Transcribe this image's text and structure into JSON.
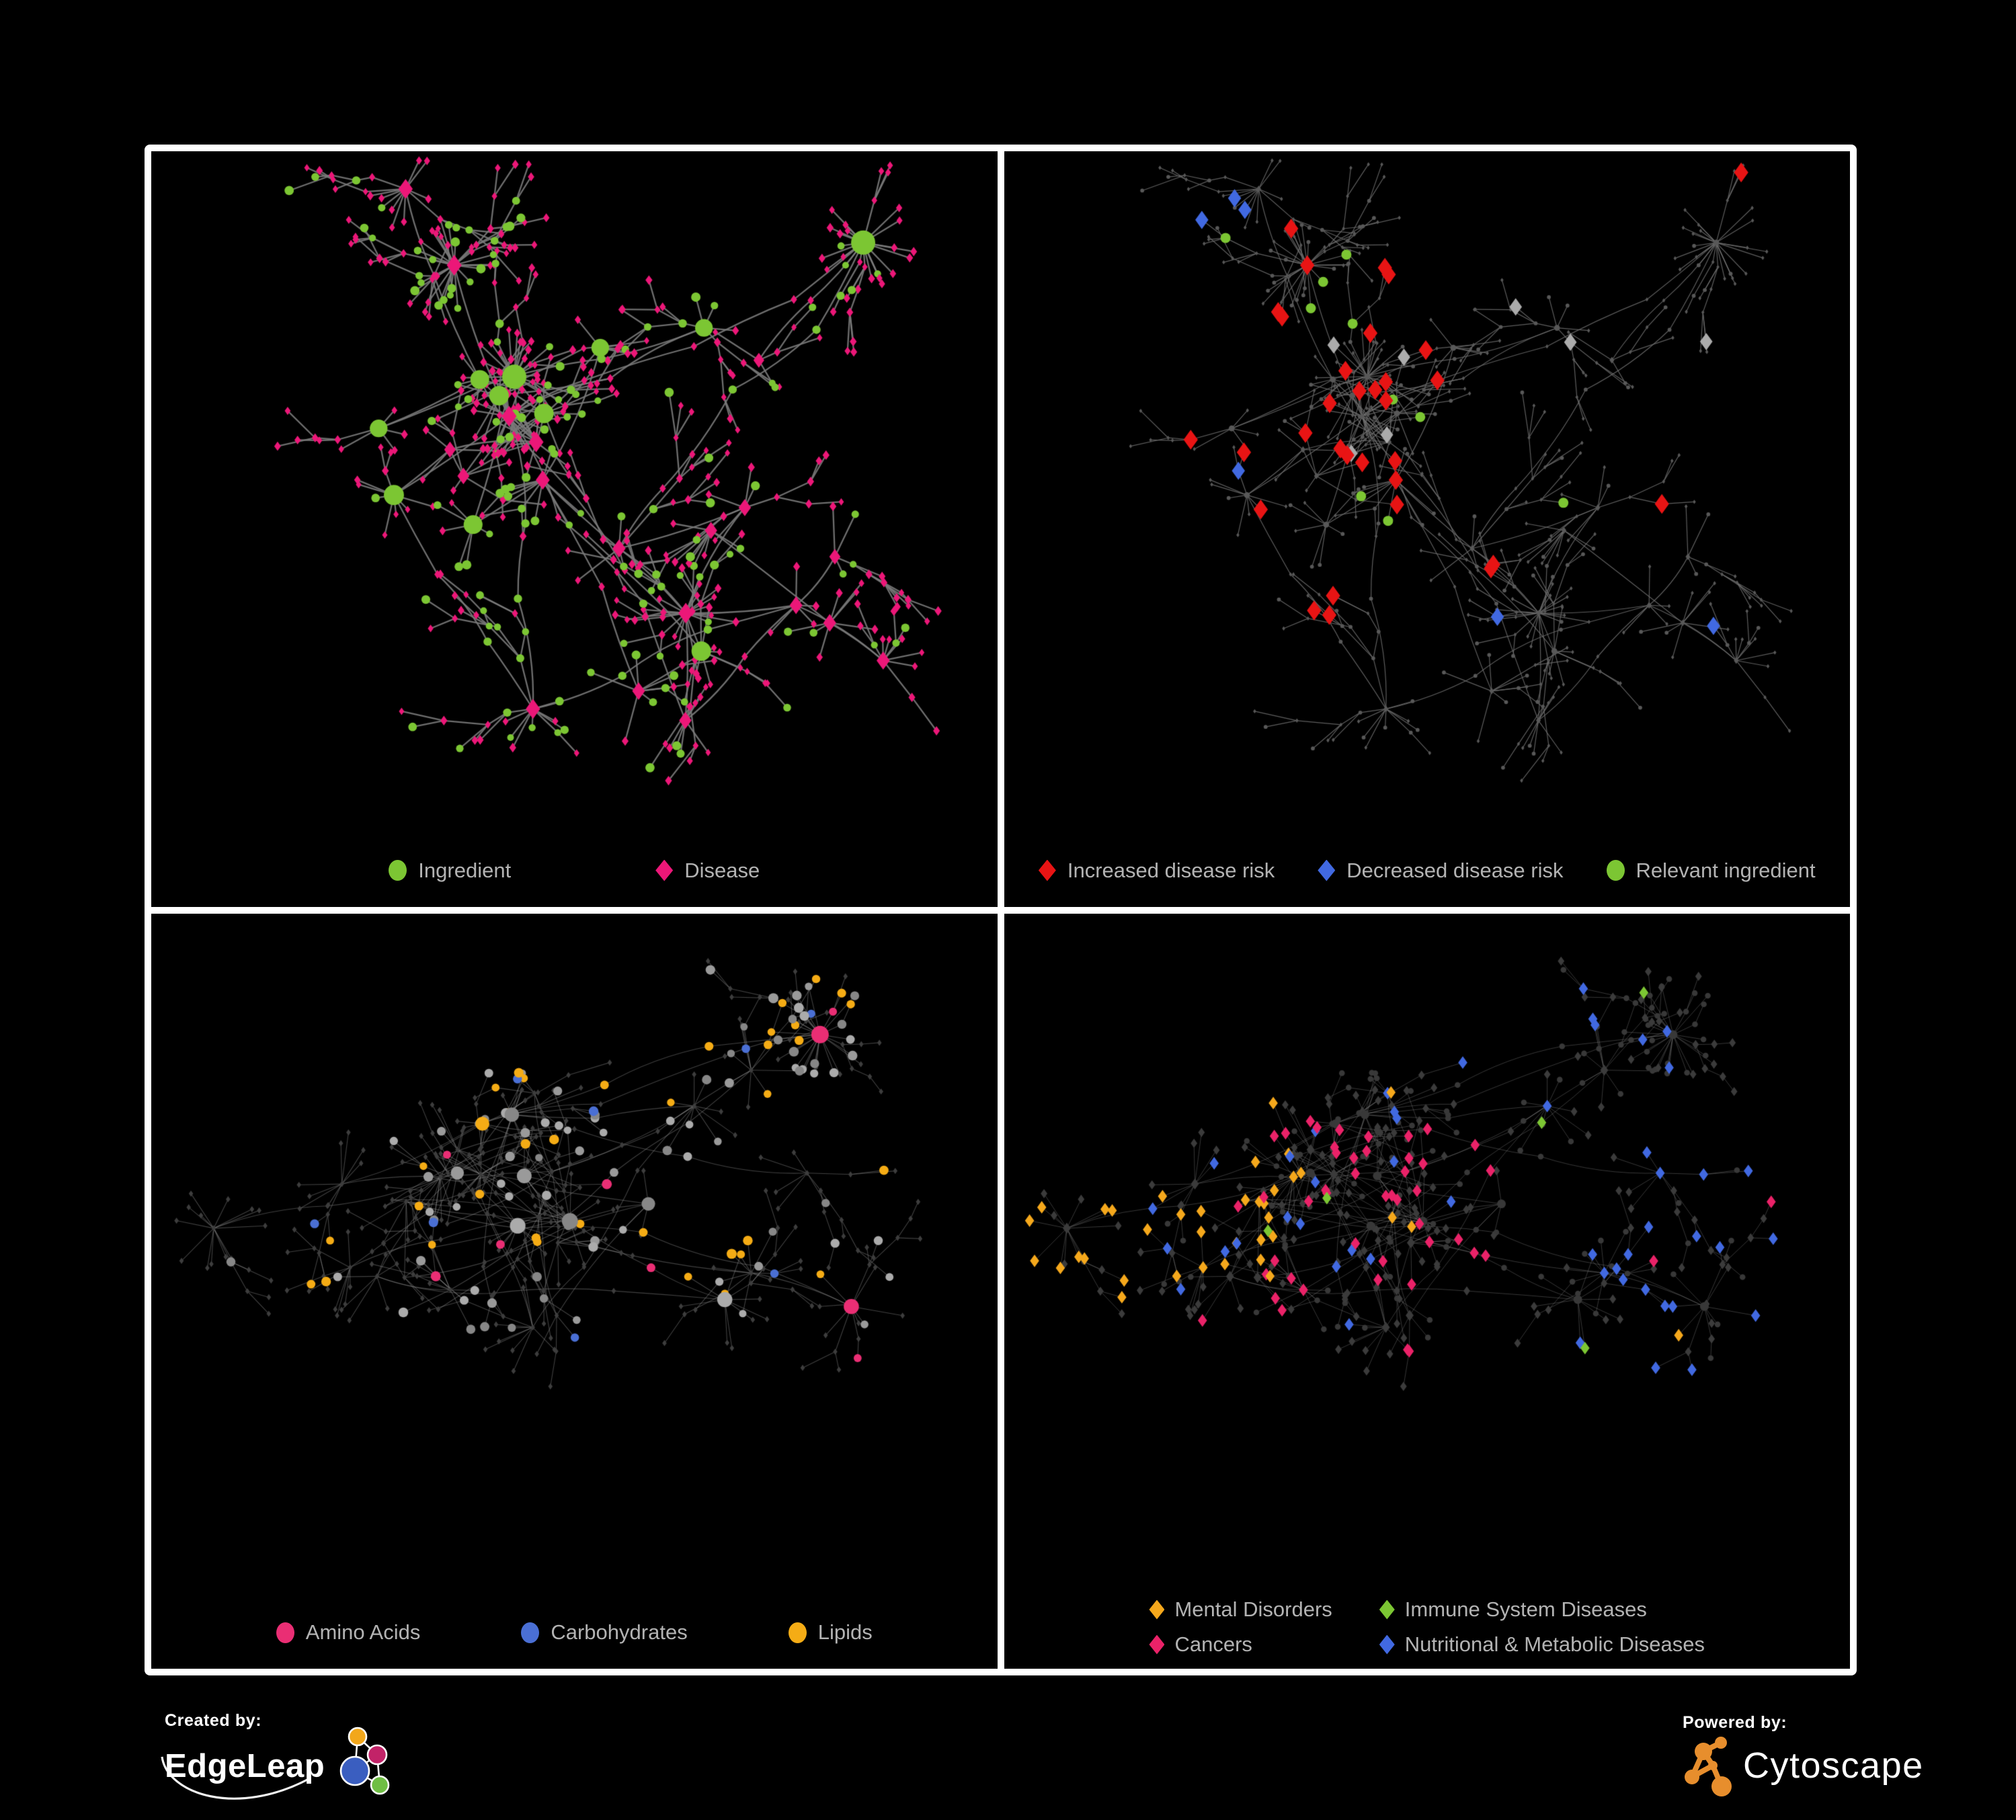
{
  "page": {
    "background": "#000000",
    "frame_color": "#ffffff",
    "legend_text_color": "#b3b3b3"
  },
  "panels": [
    {
      "id": "ingredient-disease",
      "legend": [
        {
          "label": "Ingredient",
          "shape": "circle",
          "color": "#7CC633"
        },
        {
          "label": "Disease",
          "shape": "diamond",
          "color": "#EC1778"
        }
      ],
      "network": {
        "seed": 7,
        "mode": "category",
        "edge_color": "#7a7a7a",
        "edge_width": 2.3,
        "edge_alpha": 0.9,
        "ingredient_color": "#7CC633",
        "disease_color": "#EC1778"
      }
    },
    {
      "id": "disease-risk",
      "legend": [
        {
          "label": "Increased disease risk",
          "shape": "diamond",
          "color": "#E81414"
        },
        {
          "label": "Decreased disease risk",
          "shape": "diamond",
          "color": "#4169E1"
        },
        {
          "label": "Relevant ingredient",
          "shape": "circle",
          "color": "#7CC633"
        }
      ],
      "network": {
        "seed": 7,
        "mode": "highlight",
        "edge_color": "#6e6e6e",
        "edge_width": 1.2,
        "edge_alpha": 0.85,
        "base_color": "#585858",
        "increased_color": "#E81414",
        "decreased_color": "#4169E1",
        "neutral_color": "#ABABAB",
        "ingredient_color": "#7CC633"
      }
    },
    {
      "id": "ingredient-classes",
      "legend": [
        {
          "label": "Amino Acids",
          "shape": "circle",
          "color": "#EA2E74"
        },
        {
          "label": "Carbohydrates",
          "shape": "circle",
          "color": "#4A6FD4"
        },
        {
          "label": "Lipids",
          "shape": "circle",
          "color": "#F5AC15"
        }
      ],
      "network": {
        "seed": 19,
        "mode": "ingredient-classes",
        "edge_color": "#9a9a9a",
        "edge_width": 1.1,
        "edge_alpha": 0.42,
        "amino_color": "#EA2E74",
        "carb_color": "#4A6FD4",
        "lipid_color": "#F5AC15",
        "base_circle_colors": [
          "#878787",
          "#9a9a9a",
          "#ababab"
        ],
        "disease_color": "#3d3d3d"
      }
    },
    {
      "id": "disease-classes",
      "legend_rows": [
        [
          {
            "label": "Mental Disorders",
            "shape": "diamond",
            "color": "#F5A81C"
          },
          {
            "label": "Immune System Diseases",
            "shape": "diamond",
            "color": "#7CC633"
          }
        ],
        [
          {
            "label": "Cancers",
            "shape": "diamond",
            "color": "#EA2268"
          },
          {
            "label": "Nutritional & Metabolic Diseases",
            "shape": "diamond",
            "color": "#4169E1"
          }
        ]
      ],
      "network": {
        "seed": 19,
        "mode": "disease-classes",
        "edge_color": "#8a8a8a",
        "edge_width": 1.0,
        "edge_alpha": 0.4,
        "mental_color": "#F5A81C",
        "immune_color": "#7CC633",
        "cancer_color": "#EA2268",
        "metabolic_color": "#4169E1",
        "base_color": "#3b3b3b",
        "ingredient_color": "#383838"
      }
    }
  ],
  "footer": {
    "created_by": "Created by:",
    "edgeleap": "EdgeLeap",
    "powered_by": "Powered by:",
    "cytoscape": "Cytoscape",
    "edgeleap_colors": {
      "orange": "#F2A71B",
      "magenta": "#C22368",
      "blue": "#3A5EC0",
      "green": "#6FBE44"
    },
    "cytoscape_color": "#E78E2D"
  }
}
